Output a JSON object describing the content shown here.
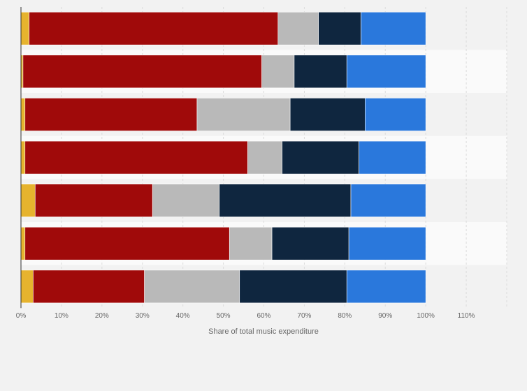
{
  "chart_data": {
    "type": "bar",
    "orientation": "horizontal",
    "stacked": true,
    "categories": [
      "",
      "",
      "",
      "",
      "",
      "",
      ""
    ],
    "series": [
      {
        "color": "#e6b32e",
        "values": [
          2,
          0.5,
          1,
          1,
          3.5,
          1,
          3
        ]
      },
      {
        "color": "#a00a0a",
        "values": [
          61.5,
          59,
          42.5,
          55,
          29,
          50.5,
          27.5
        ]
      },
      {
        "color": "#b9b9b9",
        "values": [
          10,
          8,
          23,
          8.5,
          16.5,
          10.5,
          23.5
        ]
      },
      {
        "color": "#0f263f",
        "values": [
          10.5,
          13,
          18.5,
          19,
          32.5,
          19,
          26.5
        ]
      },
      {
        "color": "#2a78dc",
        "values": [
          16,
          19.5,
          15,
          16.5,
          18.5,
          19,
          19.5
        ]
      }
    ],
    "xlim": [
      0,
      120
    ],
    "xticks": [
      0,
      10,
      20,
      30,
      40,
      50,
      60,
      70,
      80,
      90,
      100,
      110
    ],
    "xtick_labels": [
      "0%",
      "10%",
      "20%",
      "30%",
      "40%",
      "50%",
      "60%",
      "70%",
      "80%",
      "90%",
      "100%",
      "110%"
    ],
    "xlabel": "Share of total music expenditure",
    "ylabel": "",
    "title": "",
    "grid": true,
    "legend": "none"
  }
}
